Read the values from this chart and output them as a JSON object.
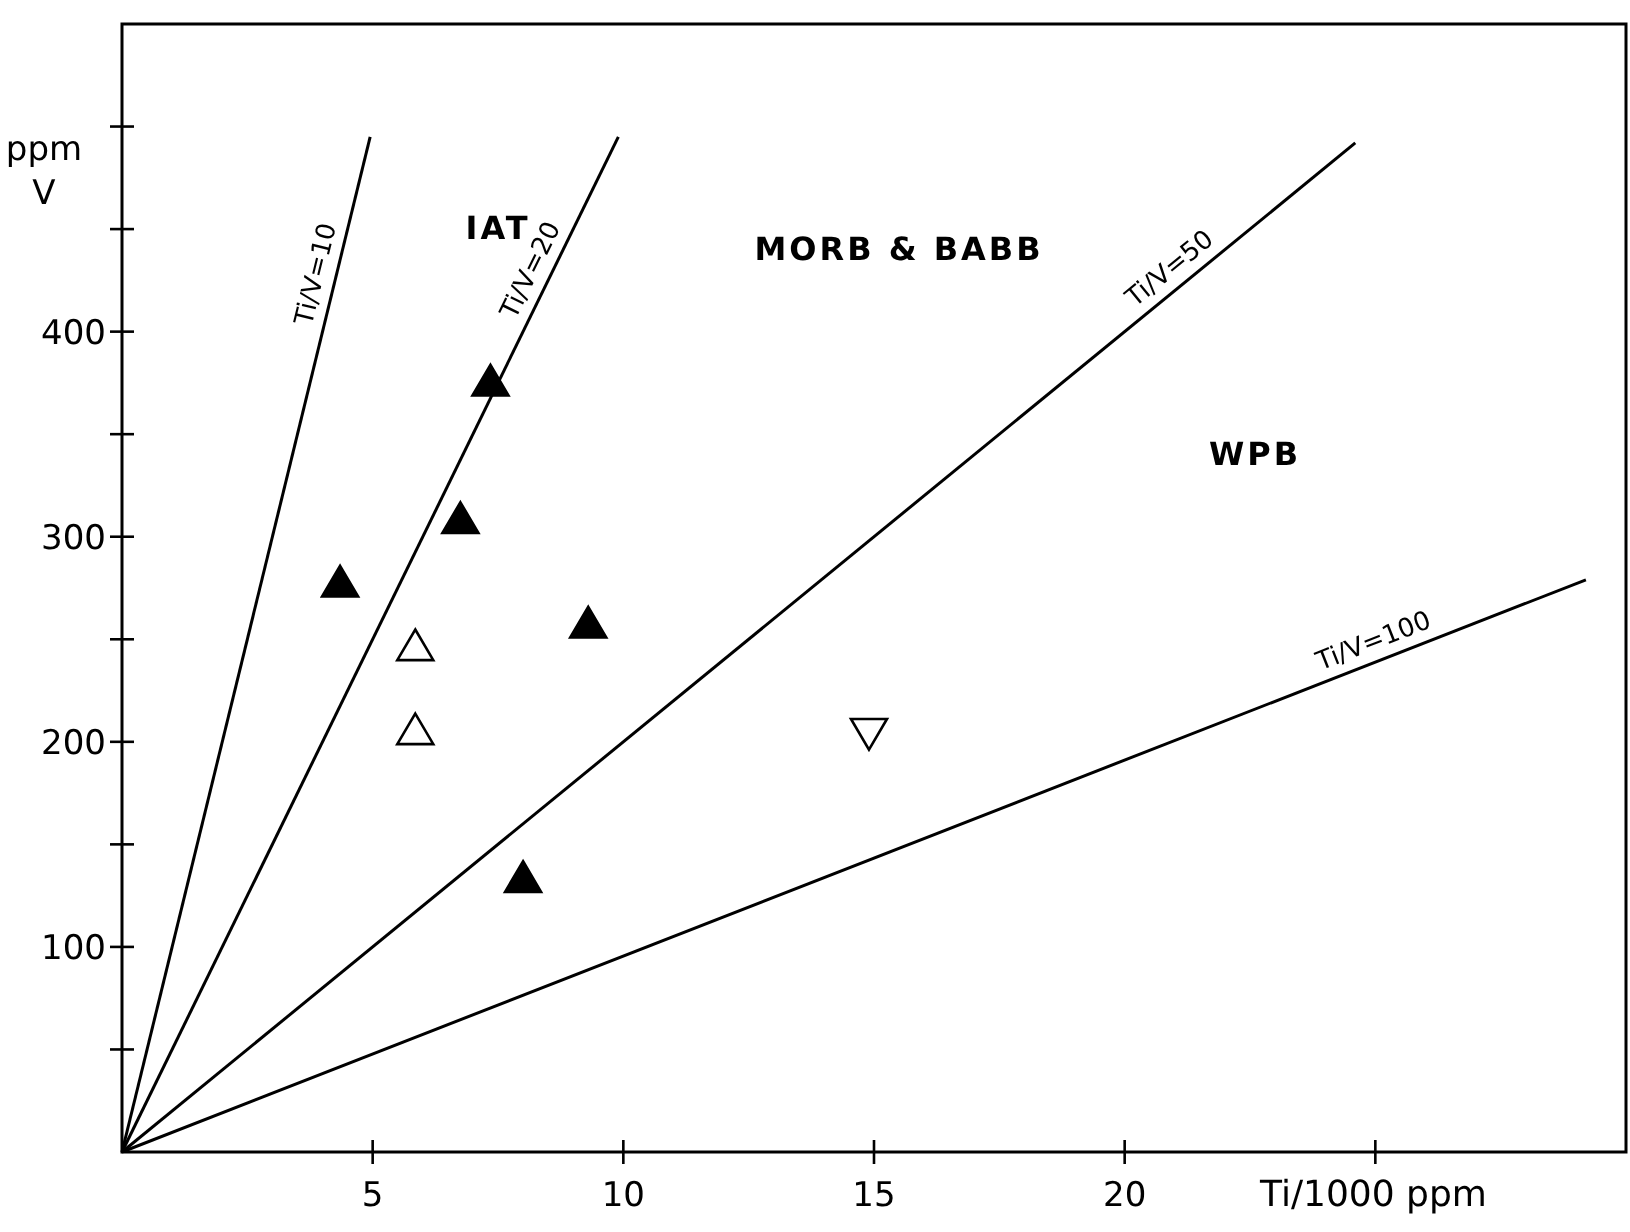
{
  "chart_data": {
    "type": "scatter",
    "xlabel": "Ti/1000 ppm",
    "ylabel": "ppm V",
    "xlim": [
      0,
      30
    ],
    "ylim": [
      0,
      550
    ],
    "xticks": [
      5,
      10,
      15,
      20,
      {
        "value": 25,
        "label": null
      }
    ],
    "yticks": [
      {
        "value": 50,
        "label": null
      },
      100,
      {
        "value": 150,
        "label": null
      },
      200,
      {
        "value": 250,
        "label": null
      },
      300,
      {
        "value": 350,
        "label": null
      },
      400,
      {
        "value": 450,
        "label": null
      },
      {
        "value": 500,
        "label": null
      }
    ],
    "grid": false,
    "series": [
      {
        "type": "line",
        "name": "Ti/V=10",
        "color": "#000000",
        "line_style": "solid",
        "marker": "none",
        "x": [
          0,
          4.95
        ],
        "values": [
          0,
          495
        ]
      },
      {
        "type": "line",
        "name": "Ti/V=20",
        "color": "#000000",
        "line_style": "solid",
        "marker": "none",
        "x": [
          0,
          9.9
        ],
        "values": [
          0,
          495
        ]
      },
      {
        "type": "line",
        "name": "Ti/V=50",
        "color": "#000000",
        "line_style": "solid",
        "marker": "none",
        "x": [
          0,
          24.6
        ],
        "values": [
          0,
          492
        ]
      },
      {
        "type": "line",
        "name": "Ti/V=100",
        "color": "#000000",
        "line_style": "solid",
        "marker": "none",
        "x": [
          0,
          29.2
        ],
        "values": [
          0,
          279
        ]
      },
      {
        "type": "scatter",
        "color": "#000000",
        "marker": "triangle",
        "x": [
          4.35,
          6.75,
          7.35,
          9.3,
          8.0
        ],
        "values": [
          277,
          308,
          375,
          257,
          133
        ]
      },
      {
        "type": "scatter",
        "color": "#ffffff",
        "marker": "triangle",
        "x": [
          5.85,
          5.85
        ],
        "values": [
          246,
          205
        ]
      },
      {
        "type": "scatter",
        "color": "#ffffff",
        "marker": "triangle-down",
        "x": [
          14.9
        ],
        "values": [
          205
        ]
      }
    ],
    "annotations": [
      "IAT",
      "MORB & BABB",
      "WPB"
    ]
  }
}
